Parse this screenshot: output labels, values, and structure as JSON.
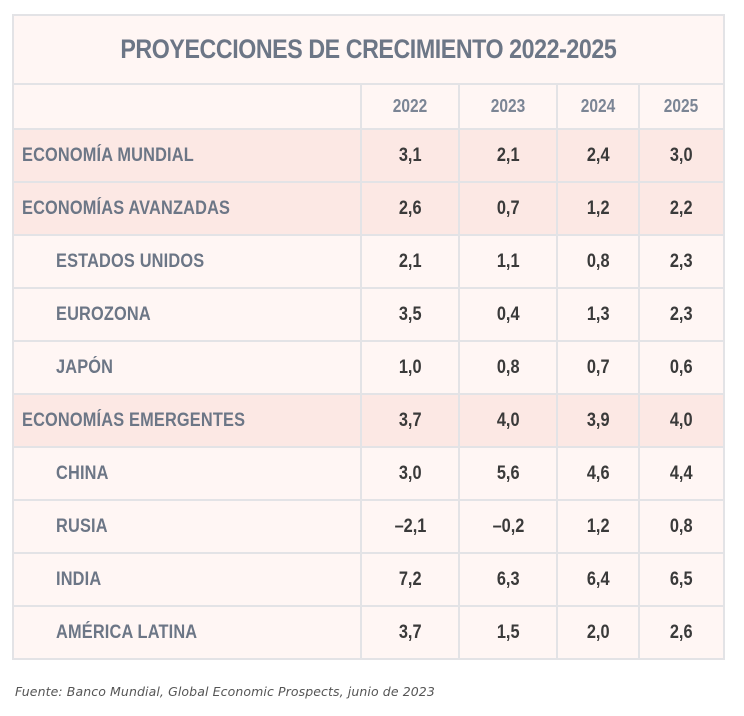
{
  "table": {
    "title": "PROYECCIONES DE CRECIMIENTO 2022-2025",
    "columns": [
      "2022",
      "2023",
      "2024",
      "2025"
    ],
    "rows": [
      {
        "label": "ECONOMÍA MUNDIAL",
        "values": [
          "3,1",
          "2,1",
          "2,4",
          "3,0"
        ],
        "highlight": true,
        "indent": false
      },
      {
        "label": "ECONOMÍAS AVANZADAS",
        "values": [
          "2,6",
          "0,7",
          "1,2",
          "2,2"
        ],
        "highlight": true,
        "indent": false
      },
      {
        "label": "ESTADOS UNIDOS",
        "values": [
          "2,1",
          "1,1",
          "0,8",
          "2,3"
        ],
        "highlight": false,
        "indent": true
      },
      {
        "label": "EUROZONA",
        "values": [
          "3,5",
          "0,4",
          "1,3",
          "2,3"
        ],
        "highlight": false,
        "indent": true
      },
      {
        "label": "JAPÓN",
        "values": [
          "1,0",
          "0,8",
          "0,7",
          "0,6"
        ],
        "highlight": false,
        "indent": true
      },
      {
        "label": "ECONOMÍAS EMERGENTES",
        "values": [
          "3,7",
          "4,0",
          "3,9",
          "4,0"
        ],
        "highlight": true,
        "indent": false
      },
      {
        "label": "CHINA",
        "values": [
          "3,0",
          "5,6",
          "4,6",
          "4,4"
        ],
        "highlight": false,
        "indent": true
      },
      {
        "label": "RUSIA",
        "values": [
          "–2,1",
          "–0,2",
          "1,2",
          "0,8"
        ],
        "highlight": false,
        "indent": true
      },
      {
        "label": "INDIA",
        "values": [
          "7,2",
          "6,3",
          "6,4",
          "6,5"
        ],
        "highlight": false,
        "indent": true
      },
      {
        "label": "AMÉRICA LATINA",
        "values": [
          "3,7",
          "1,5",
          "2,0",
          "2,6"
        ],
        "highlight": false,
        "indent": true
      }
    ]
  },
  "footnote": "Fuente: Banco Mundial, Global Economic Prospects, junio de 2023",
  "colors": {
    "row_background": "#fff6f4",
    "highlight_background": "#fce8e4",
    "label_text": "#6c7686",
    "value_text": "#3a3a3a",
    "grid_lines": "#e3e3e6"
  }
}
